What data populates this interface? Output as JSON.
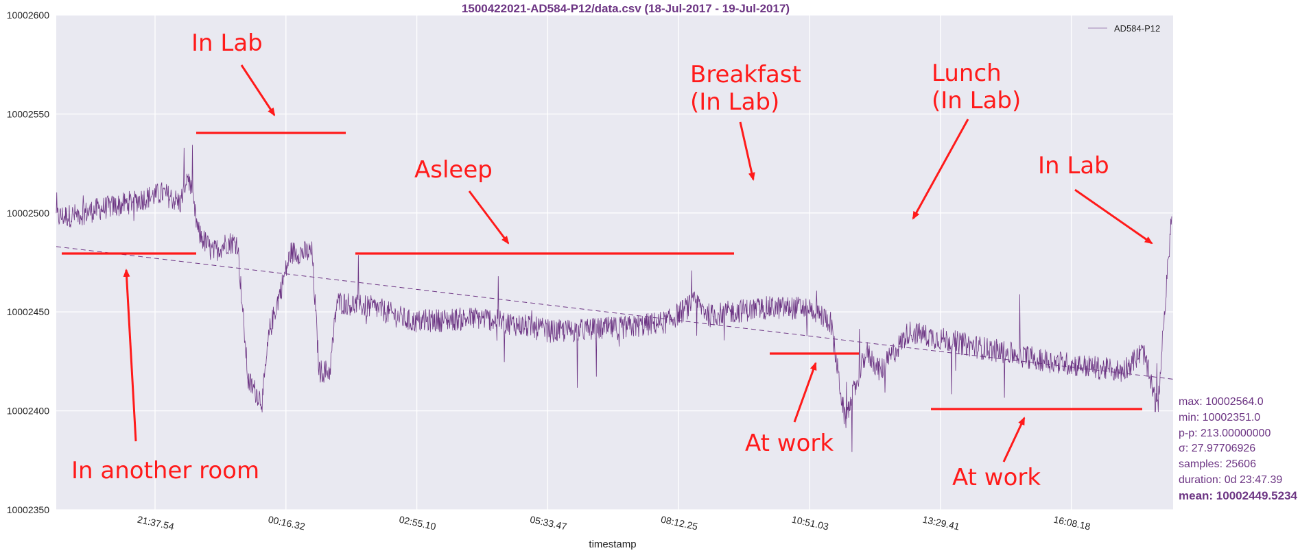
{
  "colors": {
    "series": "#6c3483",
    "background": "#e9e9f1",
    "grid": "#ffffff",
    "annotation": "#ff1a1a",
    "stats": "#6c3483"
  },
  "chart_data": {
    "type": "line",
    "title": "1500422021-AD584-P12/data.csv (18-Jul-2017 - 19-Jul-2017)",
    "xlabel": "timestamp",
    "ylabel": "",
    "ylim": [
      10002350,
      10002600
    ],
    "yticks": [
      "10002350",
      "10002400",
      "10002450",
      "10002500",
      "10002550",
      "10002600"
    ],
    "xticks": [
      "21:37.54",
      "00:16.32",
      "02:55.10",
      "05:33.47",
      "08:12.25",
      "10:51.03",
      "13:29.41",
      "16:08.18"
    ],
    "grid": true,
    "legend": {
      "position": "top-right",
      "entries": [
        "AD584-P12"
      ]
    },
    "series": [
      {
        "name": "AD584-P12",
        "style": "thin noisy line",
        "approx_profile": [
          [
            0,
            10002498
          ],
          [
            0.3,
            10002499
          ],
          [
            0.6,
            10002502
          ],
          [
            0.9,
            10002504
          ],
          [
            1.2,
            10002507
          ],
          [
            1.5,
            10002510
          ],
          [
            1.75,
            10002505
          ],
          [
            1.85,
            10002520
          ],
          [
            2.0,
            10002490
          ],
          [
            2.2,
            10002480
          ],
          [
            2.4,
            10002485
          ],
          [
            2.55,
            10002485
          ],
          [
            2.7,
            10002415
          ],
          [
            2.9,
            10002405
          ],
          [
            3.0,
            10002440
          ],
          [
            3.3,
            10002480
          ],
          [
            3.6,
            10002480
          ],
          [
            3.7,
            10002420
          ],
          [
            3.85,
            10002420
          ],
          [
            3.95,
            10002455
          ],
          [
            4.5,
            10002452
          ],
          [
            5.0,
            10002445
          ],
          [
            6.0,
            10002447
          ],
          [
            7.0,
            10002440
          ],
          [
            8.0,
            10002442
          ],
          [
            8.6,
            10002445
          ],
          [
            9.0,
            10002455
          ],
          [
            9.2,
            10002448
          ],
          [
            9.5,
            10002450
          ],
          [
            10.0,
            10002452
          ],
          [
            10.6,
            10002452
          ],
          [
            10.9,
            10002445
          ],
          [
            11.1,
            10002395
          ],
          [
            11.4,
            10002430
          ],
          [
            11.6,
            10002420
          ],
          [
            12.0,
            10002440
          ],
          [
            13.0,
            10002432
          ],
          [
            14.0,
            10002425
          ],
          [
            15.0,
            10002420
          ],
          [
            15.3,
            10002430
          ],
          [
            15.5,
            10002400
          ],
          [
            15.7,
            10002500
          ]
        ],
        "trendline": [
          [
            -0.7,
            10002483
          ],
          [
            15.7,
            10002416
          ]
        ]
      }
    ],
    "annotations": [
      {
        "text": "In another room",
        "lines": [
          "In another room"
        ]
      },
      {
        "text": "In Lab",
        "lines": [
          "In Lab"
        ]
      },
      {
        "text": "Asleep",
        "lines": [
          "Asleep"
        ]
      },
      {
        "text": "Breakfast (In Lab)",
        "lines": [
          "Breakfast",
          "(In Lab)"
        ]
      },
      {
        "text": "At work",
        "lines": [
          "At work"
        ]
      },
      {
        "text": "Lunch (In Lab)",
        "lines": [
          "Lunch",
          "(In Lab)"
        ]
      },
      {
        "text": "At work",
        "lines": [
          "At work"
        ]
      },
      {
        "text": "In Lab",
        "lines": [
          "In Lab"
        ]
      }
    ]
  },
  "stats": {
    "max": "max: 10002564.0",
    "min": "min: 10002351.0",
    "pp": "p-p: 213.00000000",
    "sigma": "σ: 27.97706926",
    "samples": "samples: 25606",
    "duration": "duration: 0d 23:47.39",
    "mean": "mean: 10002449.5234"
  }
}
